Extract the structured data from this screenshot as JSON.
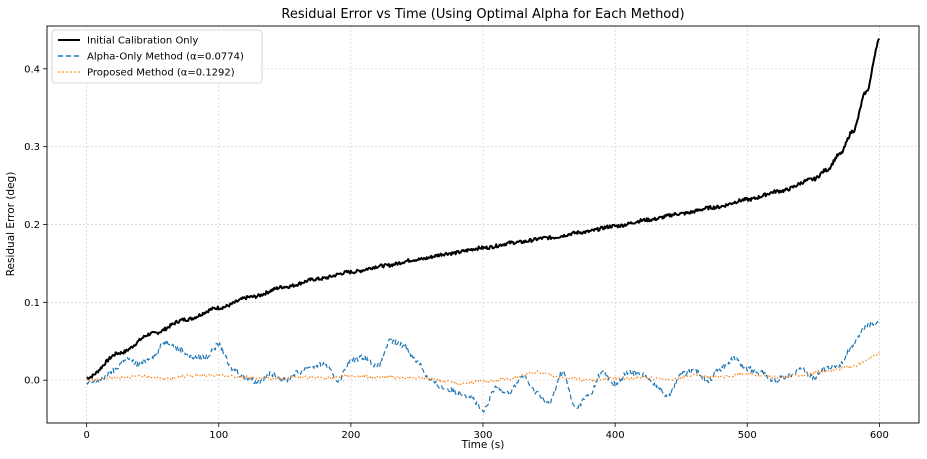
{
  "chart_data": {
    "type": "line",
    "title": "Residual Error vs Time (Using Optimal Alpha for Each Method)",
    "xlabel": "Time (s)",
    "ylabel": "Residual Error (deg)",
    "xlim": [
      -30,
      630
    ],
    "ylim": [
      -0.055,
      0.455
    ],
    "xticks": [
      0,
      100,
      200,
      300,
      400,
      500,
      600
    ],
    "yticks": [
      0.0,
      0.1,
      0.2,
      0.3,
      0.4
    ],
    "xtick_labels": [
      "0",
      "100",
      "200",
      "300",
      "400",
      "500",
      "600"
    ],
    "ytick_labels": [
      "0.0",
      "0.1",
      "0.2",
      "0.3",
      "0.4"
    ],
    "grid": true,
    "legend_position": "top-left",
    "series": [
      {
        "name": "Initial Calibration Only",
        "color": "#000000",
        "style": "solid",
        "x": [
          0,
          25,
          50,
          75,
          100,
          125,
          150,
          175,
          200,
          225,
          250,
          275,
          300,
          325,
          350,
          375,
          400,
          425,
          450,
          475,
          500,
          525,
          550,
          560,
          570,
          580,
          590,
          600
        ],
        "y": [
          0.003,
          0.035,
          0.06,
          0.078,
          0.093,
          0.107,
          0.12,
          0.13,
          0.139,
          0.147,
          0.155,
          0.163,
          0.17,
          0.177,
          0.183,
          0.19,
          0.198,
          0.206,
          0.214,
          0.222,
          0.232,
          0.243,
          0.258,
          0.27,
          0.29,
          0.32,
          0.37,
          0.437
        ]
      },
      {
        "name": "Alpha-Only Method (α=0.0774)",
        "color": "#1f77b4",
        "style": "dashed",
        "x": [
          0,
          10,
          20,
          30,
          40,
          50,
          60,
          70,
          80,
          90,
          100,
          110,
          120,
          130,
          140,
          150,
          160,
          170,
          180,
          190,
          200,
          210,
          220,
          230,
          240,
          250,
          260,
          270,
          280,
          290,
          300,
          310,
          320,
          330,
          340,
          350,
          360,
          370,
          380,
          390,
          400,
          410,
          420,
          430,
          440,
          450,
          460,
          470,
          480,
          490,
          500,
          510,
          520,
          530,
          540,
          550,
          560,
          570,
          580,
          590,
          600
        ],
        "y": [
          -0.005,
          0.0,
          0.012,
          0.028,
          0.02,
          0.03,
          0.05,
          0.04,
          0.03,
          0.03,
          0.045,
          0.015,
          0.003,
          -0.002,
          0.008,
          0.0,
          0.01,
          0.018,
          0.02,
          0.0,
          0.025,
          0.03,
          0.018,
          0.05,
          0.045,
          0.025,
          0.0,
          -0.01,
          -0.015,
          -0.02,
          -0.04,
          -0.01,
          -0.015,
          0.005,
          -0.015,
          -0.03,
          0.01,
          -0.035,
          -0.02,
          0.01,
          -0.005,
          0.01,
          0.008,
          -0.005,
          -0.02,
          0.008,
          0.012,
          0.0,
          0.015,
          0.028,
          0.015,
          0.01,
          0.0,
          0.005,
          0.015,
          0.003,
          0.015,
          0.02,
          0.045,
          0.07,
          0.074
        ]
      },
      {
        "name": "Proposed Method (α=0.1292)",
        "color": "#ff7f0e",
        "style": "dotted",
        "x": [
          0,
          20,
          40,
          60,
          80,
          100,
          120,
          140,
          160,
          180,
          200,
          220,
          240,
          260,
          280,
          300,
          320,
          340,
          360,
          380,
          400,
          420,
          440,
          460,
          480,
          500,
          520,
          540,
          560,
          580,
          600
        ],
        "y": [
          0.0,
          0.003,
          0.005,
          0.002,
          0.006,
          0.006,
          0.004,
          0.002,
          0.004,
          0.003,
          0.006,
          0.004,
          0.003,
          0.002,
          -0.004,
          -0.002,
          0.002,
          0.01,
          0.004,
          0.0,
          0.002,
          0.003,
          0.001,
          0.006,
          0.004,
          0.008,
          0.004,
          0.006,
          0.012,
          0.018,
          0.034
        ]
      }
    ]
  }
}
